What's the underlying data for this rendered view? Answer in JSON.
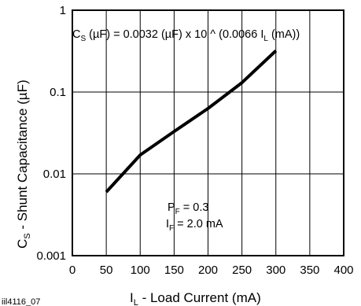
{
  "chart_data": {
    "type": "line",
    "xlabel_main": "I",
    "xlabel_sub": "L",
    "xlabel_rest": " - Load Current (mA)",
    "ylabel_main": "C",
    "ylabel_sub": "S",
    "ylabel_rest": " - Shunt Capacitance (µF)",
    "x_ticks": [
      "0",
      "50",
      "100",
      "150",
      "200",
      "250",
      "300",
      "350",
      "400"
    ],
    "y_ticks": [
      "0.001",
      "0.01",
      "0.1",
      "1"
    ],
    "xlim": [
      0,
      400
    ],
    "ylim": [
      0.001,
      1
    ],
    "y_scale": "log",
    "grid": true,
    "equation_parts": [
      "C",
      "S",
      " (µF) = 0.0032 (µF) x 10 ^ (0.0066 I",
      "L",
      " (mA))"
    ],
    "cond1_parts": [
      "P",
      "F",
      " = 0.3"
    ],
    "cond2_parts": [
      "I",
      "F",
      " = 2.0 mA"
    ],
    "figure_id": "iil4116_07",
    "series": [
      {
        "x": [
          50,
          100,
          150,
          200,
          250,
          300
        ],
        "y": [
          0.006,
          0.017,
          0.033,
          0.063,
          0.13,
          0.32
        ]
      }
    ]
  }
}
